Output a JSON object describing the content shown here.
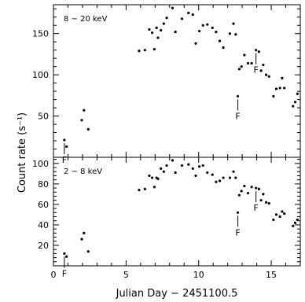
{
  "chart_data": [
    {
      "type": "scatter",
      "panel": "top",
      "label": "8 − 20 keV",
      "xlim": [
        0,
        17
      ],
      "ylim": [
        0,
        185
      ],
      "yticks": [
        50,
        100,
        150
      ],
      "series": [
        {
          "x": [
            0.75,
            0.9,
            1.95,
            2.1,
            2.4,
            5.9,
            6.3,
            6.6,
            6.8,
            6.95,
            7.1,
            7.2,
            7.4,
            7.6,
            7.8,
            8.2,
            8.4,
            8.85,
            9.3,
            9.6,
            9.8,
            10.05,
            10.3,
            10.6,
            10.95,
            11.2,
            11.45,
            11.7,
            12.15,
            12.4,
            12.55,
            12.7,
            12.8,
            12.95,
            13.15,
            13.4,
            13.65,
            13.95,
            14.15,
            14.3,
            14.45,
            14.65,
            14.85,
            15.15,
            15.35,
            15.6,
            15.75,
            15.9,
            16.5,
            16.65,
            16.8
          ],
          "y": [
            21,
            13,
            45,
            57,
            34,
            129,
            130,
            155,
            151,
            131,
            157,
            145,
            154,
            162,
            169,
            181,
            152,
            168,
            175,
            173,
            138,
            153,
            160,
            161,
            157,
            152,
            141,
            133,
            150,
            162,
            149,
            74,
            107,
            110,
            124,
            114,
            114,
            130,
            128,
            105,
            112,
            100,
            98,
            74,
            83,
            84,
            96,
            84,
            62,
            67,
            77
          ]
        }
      ],
      "markers": [
        {
          "label": "F",
          "x": 0.75
        },
        {
          "label": "F",
          "x": 12.7
        },
        {
          "label": "F",
          "x": 13.95
        }
      ]
    },
    {
      "type": "scatter",
      "panel": "bottom",
      "label": "2 − 8 keV",
      "xlim": [
        0,
        17
      ],
      "ylim": [
        0,
        106
      ],
      "yticks": [
        20,
        40,
        60,
        80,
        100
      ],
      "xticks": [
        0,
        5,
        10,
        15
      ],
      "xlabel": "Julian Day − 2451100.5",
      "ylabel": "Count rate (s⁻¹)",
      "series": [
        {
          "x": [
            0.75,
            0.9,
            1.95,
            2.1,
            2.4,
            5.9,
            6.3,
            6.6,
            6.8,
            6.95,
            7.1,
            7.2,
            7.4,
            7.6,
            7.8,
            8.2,
            8.4,
            8.85,
            9.3,
            9.6,
            9.8,
            10.05,
            10.3,
            10.6,
            10.95,
            11.2,
            11.45,
            11.7,
            12.15,
            12.4,
            12.55,
            12.7,
            12.8,
            12.95,
            13.15,
            13.4,
            13.65,
            13.95,
            14.15,
            14.3,
            14.45,
            14.65,
            14.85,
            15.15,
            15.35,
            15.6,
            15.75,
            15.9,
            16.5,
            16.65,
            16.8
          ],
          "y": [
            12,
            9,
            26,
            32,
            14,
            74,
            75,
            88,
            86,
            77,
            86,
            85,
            95,
            92,
            98,
            103,
            91,
            98,
            99,
            95,
            88,
            97,
            98,
            91,
            89,
            82,
            83,
            86,
            86,
            92,
            86,
            52,
            69,
            73,
            78,
            71,
            77,
            76,
            75,
            64,
            70,
            62,
            61,
            45,
            50,
            48,
            53,
            51,
            39,
            42,
            45
          ]
        }
      ],
      "markers": [
        {
          "label": "F",
          "x": 0.75
        },
        {
          "label": "F",
          "x": 12.7
        },
        {
          "label": "F",
          "x": 13.95
        }
      ]
    }
  ]
}
